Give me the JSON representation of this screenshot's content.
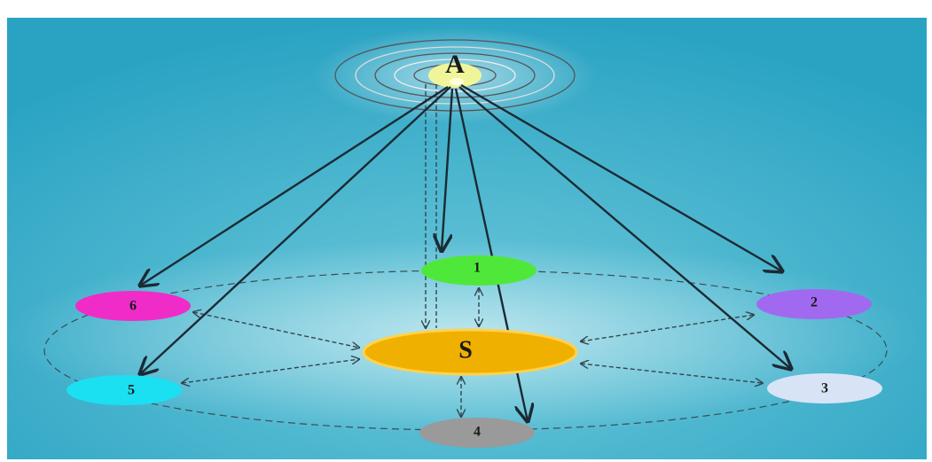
{
  "nodes": [
    {
      "label": "A"
    },
    {
      "label": "S"
    },
    {
      "label": "1"
    },
    {
      "label": "2"
    },
    {
      "label": "3"
    },
    {
      "label": "4"
    },
    {
      "label": "5"
    },
    {
      "label": "6"
    }
  ]
}
